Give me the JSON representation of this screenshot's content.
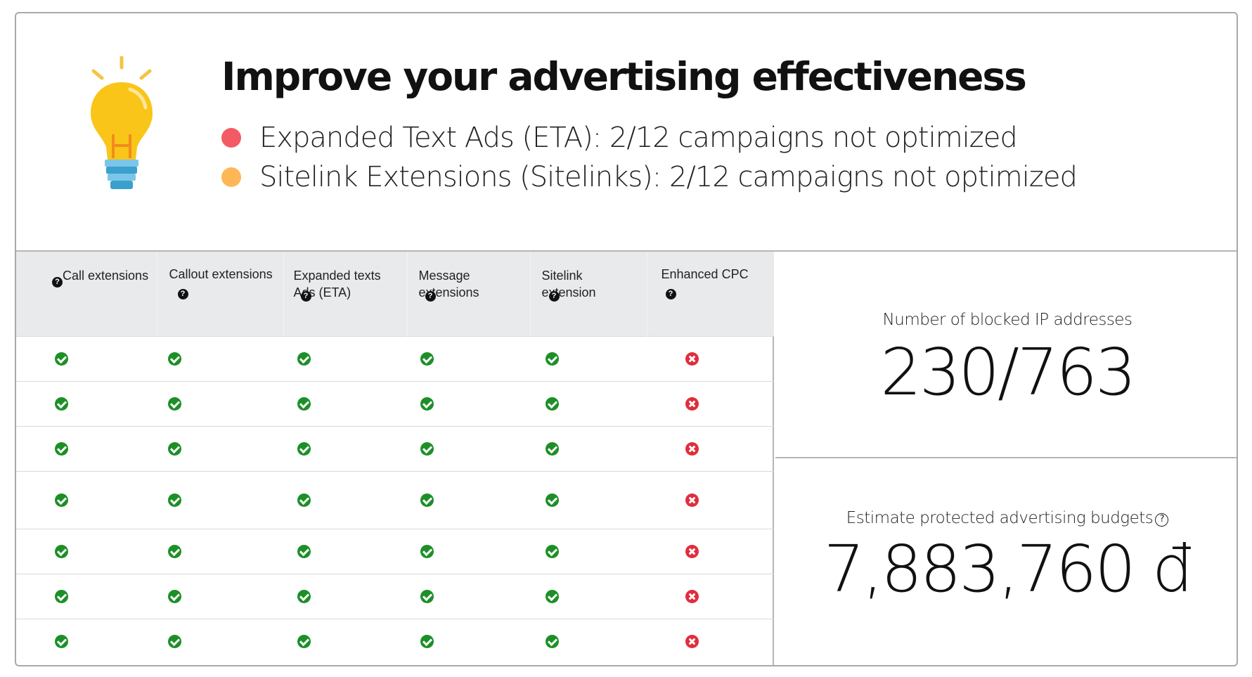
{
  "header": {
    "title": "Improve your advertising effectiveness",
    "issues": [
      {
        "text": "Expanded Text Ads (ETA): 2/12 campaigns not optimized",
        "dot_color": "#f25a64"
      },
      {
        "text": "Sitelink Extensions (Sitelinks): 2/12 campaigns not optimized",
        "dot_color": "#fdb757"
      }
    ],
    "icon": "lightbulb-icon"
  },
  "table": {
    "columns": [
      {
        "label": "Call extensions",
        "icon": "help-icon"
      },
      {
        "label": "Callout extensions",
        "icon": "help-icon"
      },
      {
        "label": "Expanded texts Ads (ETA)",
        "icon": "help-icon"
      },
      {
        "label": "Message extensions",
        "icon": "help-icon"
      },
      {
        "label": "Sitelink extension",
        "icon": "help-icon"
      },
      {
        "label": "Enhanced CPC",
        "icon": "help-icon"
      }
    ],
    "rows": [
      [
        true,
        true,
        true,
        true,
        true,
        false
      ],
      [
        true,
        true,
        true,
        true,
        true,
        false
      ],
      [
        true,
        true,
        true,
        true,
        true,
        false
      ],
      [
        true,
        true,
        true,
        true,
        true,
        false
      ],
      [
        true,
        true,
        true,
        true,
        true,
        false
      ],
      [
        true,
        true,
        true,
        true,
        true,
        false
      ],
      [
        true,
        true,
        true,
        true,
        true,
        false
      ]
    ],
    "colors": {
      "ok": "#1d8f27",
      "fail": "#e22d3c"
    }
  },
  "stats": {
    "blocked_ips": {
      "label": "Number of blocked IP addresses",
      "value": "230/763"
    },
    "protected_budget": {
      "label": "Estimate protected advertising budgets",
      "value": "7,883,760 đ",
      "icon": "help-icon"
    }
  }
}
